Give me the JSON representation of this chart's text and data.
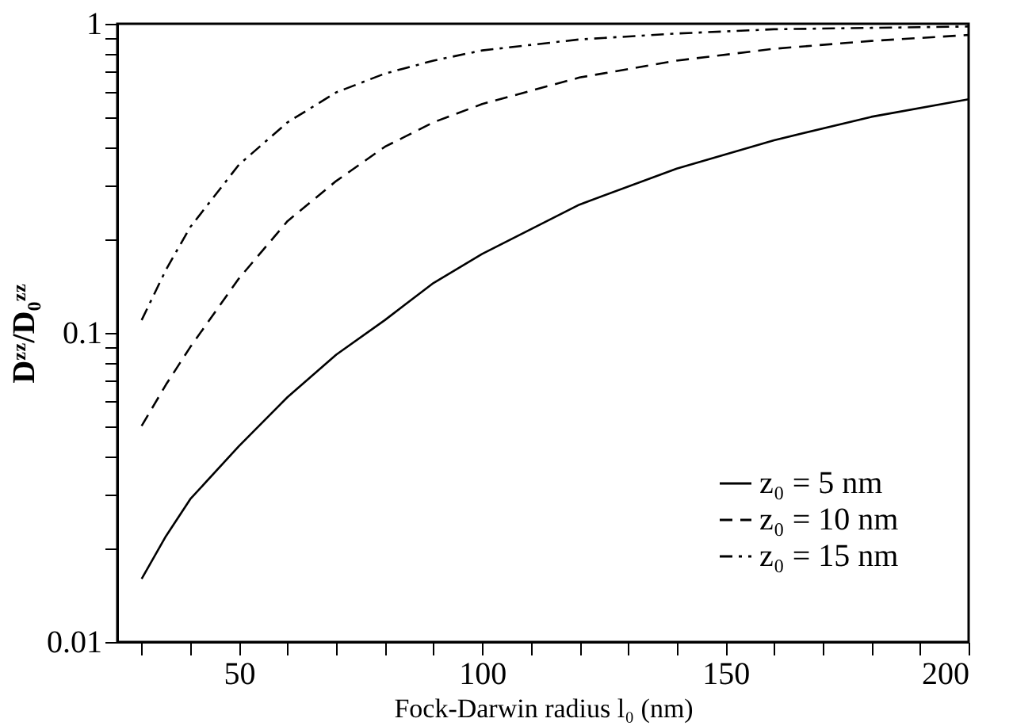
{
  "chart_data": {
    "type": "line",
    "xlabel": "Fock-Darwin radius l₀ (nm)",
    "ylabel": "Dᶻᶻ/D₀ᶻᶻ",
    "log": "y",
    "grid": false,
    "legend": "bottom right",
    "marker": "none",
    "xlim": [
      25,
      200
    ],
    "ylim": [
      0.01,
      1
    ],
    "xticks": [
      {
        "value": 30,
        "label": null
      },
      {
        "value": 40,
        "label": null
      },
      50,
      {
        "value": 60,
        "label": null
      },
      {
        "value": 70,
        "label": null
      },
      {
        "value": 80,
        "label": null
      },
      {
        "value": 90,
        "label": null
      },
      100,
      {
        "value": 110,
        "label": null
      },
      {
        "value": 120,
        "label": null
      },
      {
        "value": 130,
        "label": null
      },
      {
        "value": 140,
        "label": null
      },
      150,
      {
        "value": 160,
        "label": null
      },
      {
        "value": 170,
        "label": null
      },
      {
        "value": 180,
        "label": null
      },
      {
        "value": 190,
        "label": null
      },
      200
    ],
    "yticks": [
      0.01,
      {
        "value": 0.02,
        "label": null
      },
      {
        "value": 0.03,
        "label": null
      },
      {
        "value": 0.04,
        "label": null
      },
      {
        "value": 0.05,
        "label": null
      },
      {
        "value": 0.06,
        "label": null
      },
      {
        "value": 0.07,
        "label": null
      },
      {
        "value": 0.08,
        "label": null
      },
      {
        "value": 0.09,
        "label": null
      },
      0.1,
      {
        "value": 0.2,
        "label": null
      },
      {
        "value": 0.3,
        "label": null
      },
      {
        "value": 0.4,
        "label": null
      },
      {
        "value": 0.5,
        "label": null
      },
      {
        "value": 0.6,
        "label": null
      },
      {
        "value": 0.7,
        "label": null
      },
      {
        "value": 0.8,
        "label": null
      },
      {
        "value": 0.9,
        "label": null
      },
      1
    ],
    "x": [
      30,
      35,
      40,
      50,
      60,
      70,
      80,
      90,
      100,
      120,
      140,
      160,
      180,
      200
    ],
    "series": [
      {
        "name": "z₀ = 5 nm",
        "color": "#000000",
        "line_style": "solid",
        "values": [
          0.016,
          0.022,
          0.029,
          0.043,
          0.062,
          0.085,
          0.11,
          0.145,
          0.18,
          0.26,
          0.34,
          0.42,
          0.5,
          0.57
        ]
      },
      {
        "name": "z₀ = 10 nm",
        "color": "#000000",
        "line_style": "dashed",
        "values": [
          0.05,
          0.068,
          0.09,
          0.15,
          0.23,
          0.31,
          0.4,
          0.48,
          0.55,
          0.67,
          0.76,
          0.83,
          0.88,
          0.92
        ]
      },
      {
        "name": "z₀ = 15 nm",
        "color": "#000000",
        "line_style": "dashdot",
        "values": [
          0.11,
          0.16,
          0.22,
          0.35,
          0.48,
          0.6,
          0.69,
          0.76,
          0.82,
          0.89,
          0.93,
          0.96,
          0.97,
          0.98
        ]
      }
    ]
  }
}
